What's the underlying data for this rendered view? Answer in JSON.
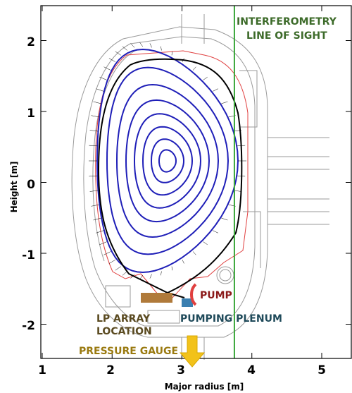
{
  "axes": {
    "xlabel": "Major radius [m]",
    "ylabel": "Height [m]",
    "x_ticks": [
      "1",
      "2",
      "3",
      "4",
      "5"
    ],
    "y_ticks": [
      "2",
      "1",
      "0",
      "-1",
      "-2"
    ],
    "x_range": [
      1,
      5.4
    ],
    "y_range": [
      -2.5,
      2.35
    ]
  },
  "annotations": {
    "interferometry_line1": "INTERFEROMETRY",
    "interferometry_line2": "LINE OF SIGHT",
    "pump": "PUMP",
    "pumping_plenum": "PUMPING PLENUM",
    "lp_array_line1": "LP ARRAY",
    "lp_array_line2": "LOCATION",
    "pressure_gauge": "PRESSURE GAUGE"
  },
  "interferometry_radius": 3.75,
  "colors": {
    "flux_surface": "#1f1fb8",
    "separatrix": "#000000",
    "wall": "#e04040",
    "interferometry": "#3aa63a",
    "interferometry_text": "#3d6b2a",
    "pump_text": "#8b1a1a",
    "plenum_text": "#1f4a5a",
    "lp_text": "#5a4a20",
    "gauge_text": "#9a7a10",
    "arrow": "#f2c21a",
    "brown_component": "#b07a3a"
  }
}
